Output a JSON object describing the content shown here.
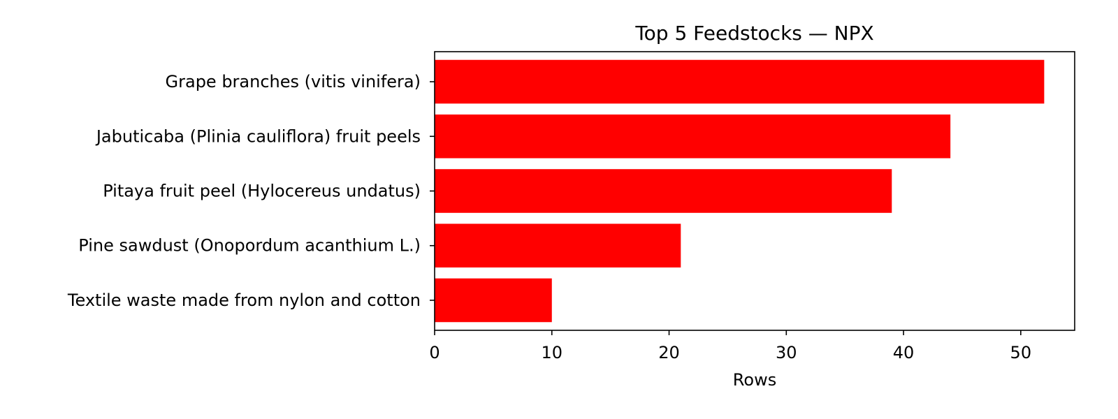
{
  "chart_data": {
    "type": "bar",
    "orientation": "horizontal",
    "title": "Top 5 Feedstocks — NPX",
    "xlabel": "Rows",
    "ylabel": "",
    "categories": [
      "Grape branches (vitis vinifera)",
      "Jabuticaba (Plinia cauliflora) fruit peels",
      "Pitaya fruit peel (Hylocereus undatus)",
      "Pine sawdust (Onopordum acanthium L.)",
      "Textile waste made from nylon and cotton"
    ],
    "values": [
      52,
      44,
      39,
      21,
      10
    ],
    "xlim": [
      0,
      54.6
    ],
    "xticks": [
      0,
      10,
      20,
      30,
      40,
      50
    ],
    "bar_color": "#ff0000",
    "grid": false,
    "legend": "none"
  }
}
